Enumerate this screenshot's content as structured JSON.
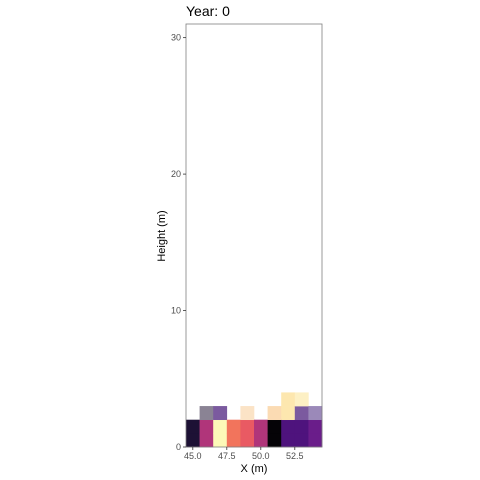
{
  "chart_data": {
    "type": "heatmap",
    "title": "Year: 0",
    "xlabel": "X (m)",
    "ylabel": "Height (m)",
    "xlim": [
      44.5,
      54.5
    ],
    "ylim": [
      0,
      31
    ],
    "x_ticks": [
      {
        "value": 45.0,
        "label": "45.0"
      },
      {
        "value": 47.5,
        "label": "47.5"
      },
      {
        "value": 50.0,
        "label": "50.0"
      },
      {
        "value": 52.5,
        "label": "52.5"
      }
    ],
    "y_ticks": [
      {
        "value": 0,
        "label": "0"
      },
      {
        "value": 10,
        "label": "10"
      },
      {
        "value": 20,
        "label": "20"
      },
      {
        "value": 30,
        "label": "30"
      }
    ],
    "grid": false,
    "legend": "none",
    "cell_width": 1,
    "cell_height": 1,
    "cells": [
      {
        "x": 45,
        "y": 0,
        "color": "#1d1135"
      },
      {
        "x": 45,
        "y": 1,
        "color": "#1d1135"
      },
      {
        "x": 46,
        "y": 0,
        "color": "#b0357a"
      },
      {
        "x": 46,
        "y": 1,
        "color": "#b0357a"
      },
      {
        "x": 46,
        "y": 2,
        "color": "#8a8394"
      },
      {
        "x": 47,
        "y": 0,
        "color": "#fdf9b8"
      },
      {
        "x": 47,
        "y": 1,
        "color": "#fdf9b8"
      },
      {
        "x": 47,
        "y": 2,
        "color": "#7b5a9f"
      },
      {
        "x": 48,
        "y": 0,
        "color": "#f2745c"
      },
      {
        "x": 48,
        "y": 1,
        "color": "#f2745c"
      },
      {
        "x": 49,
        "y": 0,
        "color": "#e95a63"
      },
      {
        "x": 49,
        "y": 1,
        "color": "#e95a63"
      },
      {
        "x": 49,
        "y": 2,
        "color": "#fbe3c6"
      },
      {
        "x": 50,
        "y": 0,
        "color": "#b0357a"
      },
      {
        "x": 50,
        "y": 1,
        "color": "#b0357a"
      },
      {
        "x": 51,
        "y": 0,
        "color": "#050307"
      },
      {
        "x": 51,
        "y": 1,
        "color": "#050307"
      },
      {
        "x": 51,
        "y": 2,
        "color": "#fbdbb3"
      },
      {
        "x": 52,
        "y": 0,
        "color": "#4e137d"
      },
      {
        "x": 52,
        "y": 1,
        "color": "#4e137d"
      },
      {
        "x": 52,
        "y": 2,
        "color": "#fde7af"
      },
      {
        "x": 52,
        "y": 3,
        "color": "#fde7af"
      },
      {
        "x": 53,
        "y": 0,
        "color": "#4e137d"
      },
      {
        "x": 53,
        "y": 1,
        "color": "#4e137d"
      },
      {
        "x": 53,
        "y": 2,
        "color": "#7b5a9f"
      },
      {
        "x": 53,
        "y": 3,
        "color": "#fdf0c4"
      },
      {
        "x": 54,
        "y": 0,
        "color": "#6a1d8a"
      },
      {
        "x": 54,
        "y": 1,
        "color": "#6a1d8a"
      },
      {
        "x": 54,
        "y": 2,
        "color": "#9b89b9"
      }
    ]
  }
}
